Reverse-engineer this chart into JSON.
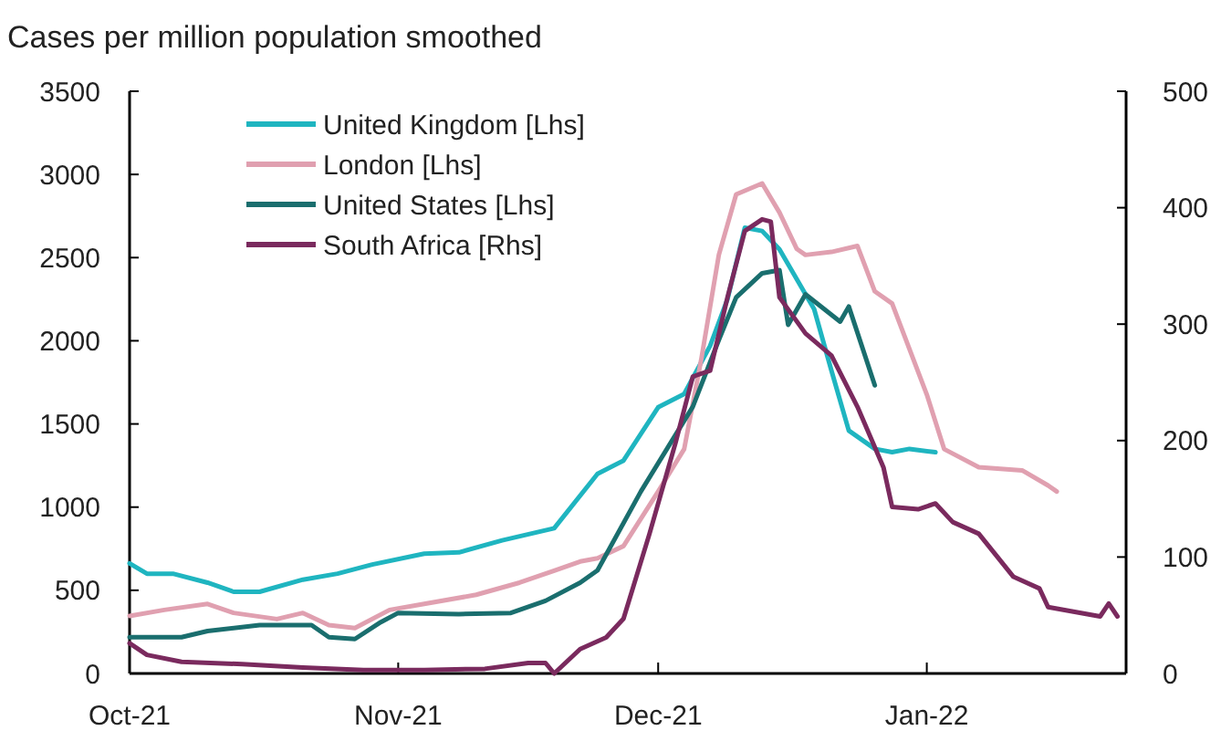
{
  "chart_data": {
    "type": "line",
    "title": "Cases per million population smoothed",
    "xlim": [
      "2021-10-01",
      "2022-01-24"
    ],
    "xticks": [
      {
        "value": "2021-10-01",
        "label": "Oct-21"
      },
      {
        "value": "2021-11-01",
        "label": "Nov-21"
      },
      {
        "value": "2021-12-01",
        "label": "Dec-21"
      },
      {
        "value": "2022-01-01",
        "label": "Jan-22"
      }
    ],
    "ylim": [
      0,
      3500
    ],
    "yticks": [
      0,
      500,
      1000,
      1500,
      2000,
      2500,
      3000,
      3500
    ],
    "y2lim": [
      0,
      500
    ],
    "y2ticks": [
      0,
      100,
      200,
      300,
      400,
      500
    ],
    "grid": false,
    "legend": "top left",
    "series": [
      {
        "name": "United Kingdom [Lhs]",
        "color": "#1fb5c0",
        "x": [
          "2021-10-01",
          "2021-10-03",
          "2021-10-06",
          "2021-10-10",
          "2021-10-13",
          "2021-10-16",
          "2021-10-21",
          "2021-10-25",
          "2021-10-29",
          "2021-11-04",
          "2021-11-08",
          "2021-11-13",
          "2021-11-19",
          "2021-11-24",
          "2021-11-27",
          "2021-12-01",
          "2021-12-04",
          "2021-12-07",
          "2021-12-09",
          "2021-12-11",
          "2021-12-13",
          "2021-12-15",
          "2021-12-19",
          "2021-12-21",
          "2021-12-23",
          "2021-12-26",
          "2021-12-28",
          "2021-12-30",
          "2022-01-02"
        ],
        "values": [
          662,
          600,
          600,
          546,
          491,
          491,
          564,
          600,
          655,
          720,
          728,
          800,
          873,
          1200,
          1280,
          1600,
          1680,
          1970,
          2250,
          2680,
          2660,
          2550,
          2190,
          1820,
          1460,
          1350,
          1330,
          1350,
          1330
        ]
      },
      {
        "name": "London [Lhs]",
        "color": "#e0a0b0",
        "x": [
          "2021-10-01",
          "2021-10-05",
          "2021-10-10",
          "2021-10-13",
          "2021-10-18",
          "2021-10-21",
          "2021-10-24",
          "2021-10-27",
          "2021-10-31",
          "2021-11-04",
          "2021-11-10",
          "2021-11-15",
          "2021-11-19",
          "2021-11-22",
          "2021-11-24",
          "2021-11-27",
          "2021-12-01",
          "2021-12-04",
          "2021-12-06",
          "2021-12-08",
          "2021-12-10",
          "2021-12-13",
          "2021-12-15",
          "2021-12-17",
          "2021-12-18",
          "2021-12-21",
          "2021-12-24",
          "2021-12-26",
          "2021-12-28",
          "2022-01-01",
          "2022-01-03",
          "2022-01-07",
          "2022-01-12",
          "2022-01-15",
          "2022-01-16"
        ],
        "values": [
          346,
          382,
          418,
          364,
          327,
          364,
          291,
          273,
          382,
          418,
          473,
          546,
          618,
          673,
          693,
          766,
          1094,
          1349,
          1896,
          2516,
          2880,
          2946,
          2771,
          2552,
          2516,
          2534,
          2570,
          2297,
          2224,
          1677,
          1349,
          1240,
          1221,
          1130,
          1094
        ]
      },
      {
        "name": "United States [Lhs]",
        "color": "#1a6e6e",
        "x": [
          "2021-10-01",
          "2021-10-07",
          "2021-10-10",
          "2021-10-16",
          "2021-10-22",
          "2021-10-24",
          "2021-10-27",
          "2021-10-30",
          "2021-11-01",
          "2021-11-08",
          "2021-11-14",
          "2021-11-18",
          "2021-11-22",
          "2021-11-24",
          "2021-11-29",
          "2021-12-02",
          "2021-12-05",
          "2021-12-08",
          "2021-12-10",
          "2021-12-13",
          "2021-12-15",
          "2021-12-16",
          "2021-12-18",
          "2021-12-22",
          "2021-12-23",
          "2021-12-26"
        ],
        "values": [
          218,
          218,
          255,
          291,
          291,
          218,
          207,
          309,
          364,
          357,
          364,
          437,
          546,
          620,
          1094,
          1349,
          1604,
          2005,
          2261,
          2406,
          2425,
          2096,
          2279,
          2115,
          2206,
          1732
        ]
      },
      {
        "name": "South Africa [Rhs]",
        "color": "#7a2a5e",
        "axis": "y2",
        "x": [
          "2021-10-01",
          "2021-10-03",
          "2021-10-07",
          "2021-10-14",
          "2021-10-21",
          "2021-10-28",
          "2021-11-04",
          "2021-11-11",
          "2021-11-16",
          "2021-11-18",
          "2021-11-19",
          "2021-11-22",
          "2021-11-25",
          "2021-11-27",
          "2021-11-30",
          "2021-12-03",
          "2021-12-05",
          "2021-12-07",
          "2021-12-09",
          "2021-12-11",
          "2021-12-13",
          "2021-12-14",
          "2021-12-15",
          "2021-12-18",
          "2021-12-21",
          "2021-12-24",
          "2021-12-27",
          "2021-12-28",
          "2021-12-31",
          "2022-01-02",
          "2022-01-04",
          "2022-01-07",
          "2022-01-11",
          "2022-01-14",
          "2022-01-15",
          "2022-01-21",
          "2022-01-22",
          "2022-01-23"
        ],
        "values": [
          26,
          16,
          10,
          8,
          5,
          3,
          3,
          4,
          9,
          9,
          0,
          21,
          31,
          47,
          120,
          198,
          255,
          260,
          323,
          380,
          390,
          388,
          323,
          292,
          273,
          229,
          177,
          143,
          141,
          146,
          130,
          120,
          83,
          73,
          57,
          49,
          60,
          49
        ]
      }
    ]
  }
}
